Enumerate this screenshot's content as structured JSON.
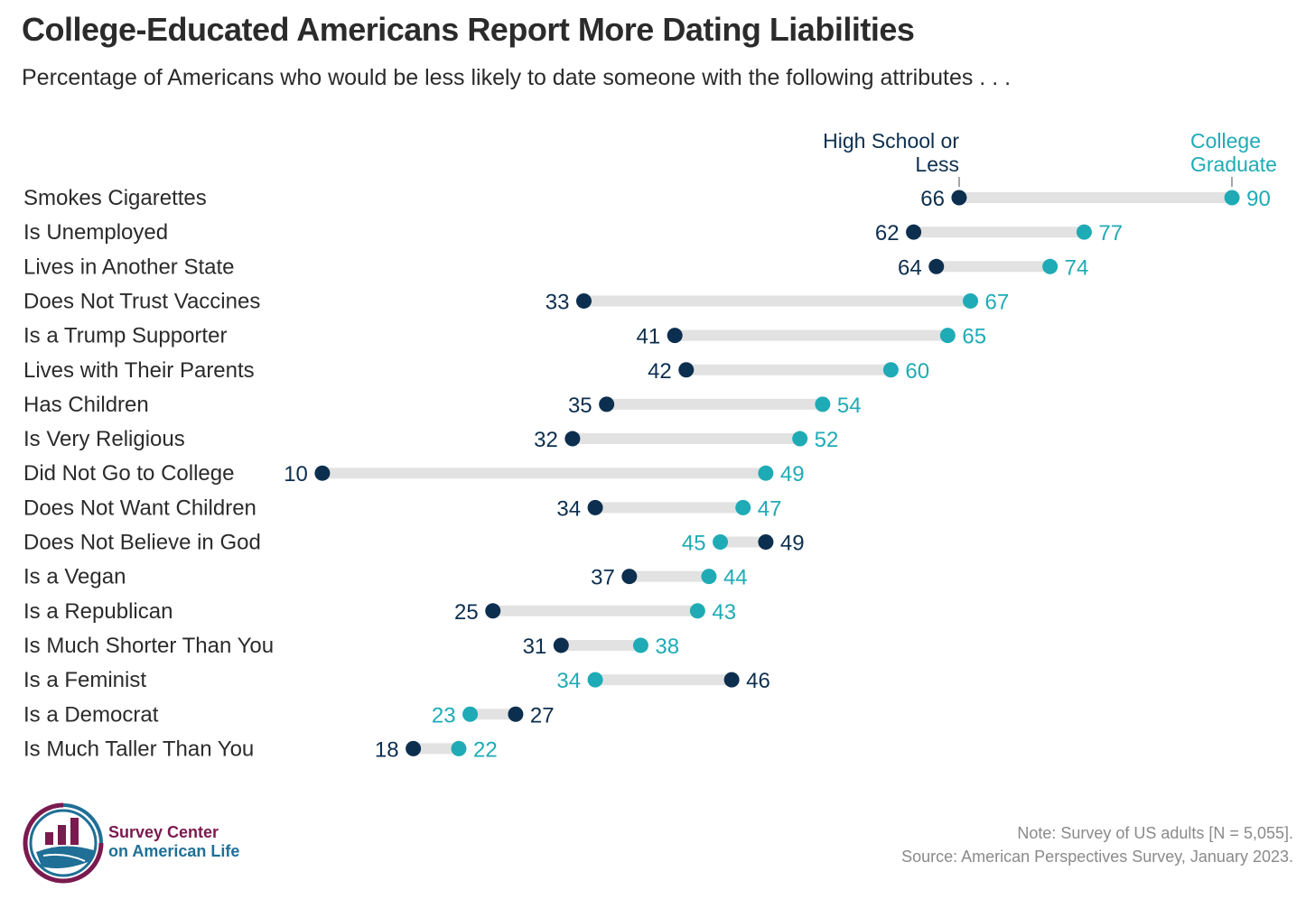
{
  "chart_data": {
    "type": "dumbbell",
    "title": "College-Educated Americans Report More Dating Liabilities",
    "subtitle": "Percentage of Americans who would be less likely to date someone with the following attributes . . .",
    "series": [
      {
        "name": "High School or Less",
        "color": "#0d2f4f"
      },
      {
        "name": "College Graduate",
        "color": "#1fabb5"
      }
    ],
    "categories": [
      "Smokes Cigarettes",
      "Is Unemployed",
      "Lives in Another State",
      "Does Not Trust Vaccines",
      "Is a Trump Supporter",
      "Lives with Their Parents",
      "Has Children",
      "Is Very Religious",
      "Did Not Go to College",
      "Does Not Want Children",
      "Does Not Believe in God",
      "Is a Vegan",
      "Is a Republican",
      "Is Much Shorter Than You",
      "Is a Feminist",
      "Is a Democrat",
      "Is Much Taller Than You"
    ],
    "high_school": [
      66,
      62,
      64,
      33,
      41,
      42,
      35,
      32,
      10,
      34,
      49,
      37,
      25,
      31,
      46,
      27,
      18
    ],
    "college": [
      90,
      77,
      74,
      67,
      65,
      60,
      54,
      52,
      49,
      47,
      45,
      44,
      43,
      38,
      34,
      23,
      22
    ],
    "bar_color": "#e2e2e2"
  },
  "footer": {
    "note": "Note: Survey of US adults [N = 5,055].",
    "source": "Source: American Perspectives Survey, January 2023.",
    "logo_line1": "Survey Center",
    "logo_line2": "on American Life"
  }
}
